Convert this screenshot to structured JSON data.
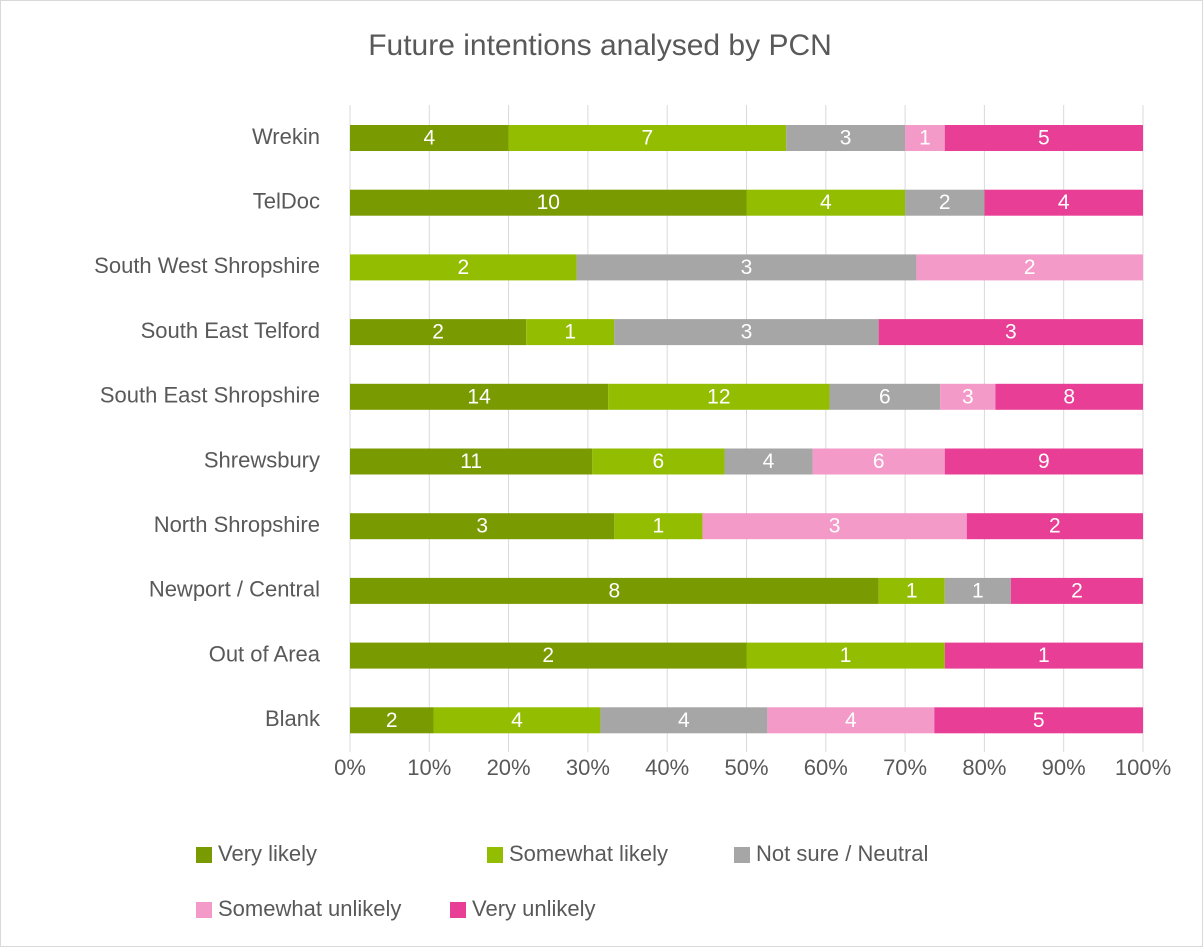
{
  "chart_data": {
    "type": "bar",
    "orientation": "horizontal",
    "stacking": "percent",
    "title": "Future intentions analysed by PCN",
    "categories": [
      "Wrekin",
      "TelDoc",
      "South West Shropshire",
      "South East Telford",
      "South East Shropshire",
      "Shrewsbury",
      "North Shropshire",
      "Newport / Central",
      "Out of Area",
      "Blank"
    ],
    "series": [
      {
        "name": "Very likely",
        "color": "#7a9a01",
        "values": [
          4,
          10,
          null,
          2,
          14,
          11,
          3,
          8,
          2,
          2
        ]
      },
      {
        "name": "Somewhat likely",
        "color": "#93bd00",
        "values": [
          7,
          4,
          2,
          1,
          12,
          6,
          1,
          1,
          1,
          4
        ]
      },
      {
        "name": "Not sure / Neutral",
        "color": "#a6a6a6",
        "values": [
          3,
          2,
          3,
          3,
          6,
          4,
          null,
          1,
          null,
          4
        ]
      },
      {
        "name": "Somewhat unlikely",
        "color": "#f39ac9",
        "values": [
          1,
          null,
          2,
          null,
          3,
          6,
          3,
          null,
          null,
          4
        ]
      },
      {
        "name": "Very unlikely",
        "color": "#e83e96",
        "values": [
          5,
          4,
          null,
          3,
          8,
          9,
          2,
          2,
          1,
          5
        ]
      }
    ],
    "xlim": [
      0,
      100
    ],
    "xticks": [
      {
        "value": 0,
        "label": "0%"
      },
      {
        "value": 10,
        "label": "10%"
      },
      {
        "value": 20,
        "label": "20%"
      },
      {
        "value": 30,
        "label": "30%"
      },
      {
        "value": 40,
        "label": "40%"
      },
      {
        "value": 50,
        "label": "50%"
      },
      {
        "value": 60,
        "label": "60%"
      },
      {
        "value": 70,
        "label": "70%"
      },
      {
        "value": 80,
        "label": "80%"
      },
      {
        "value": 90,
        "label": "90%"
      },
      {
        "value": 100,
        "label": "100%"
      }
    ],
    "grid": true,
    "legend": "bottom"
  }
}
